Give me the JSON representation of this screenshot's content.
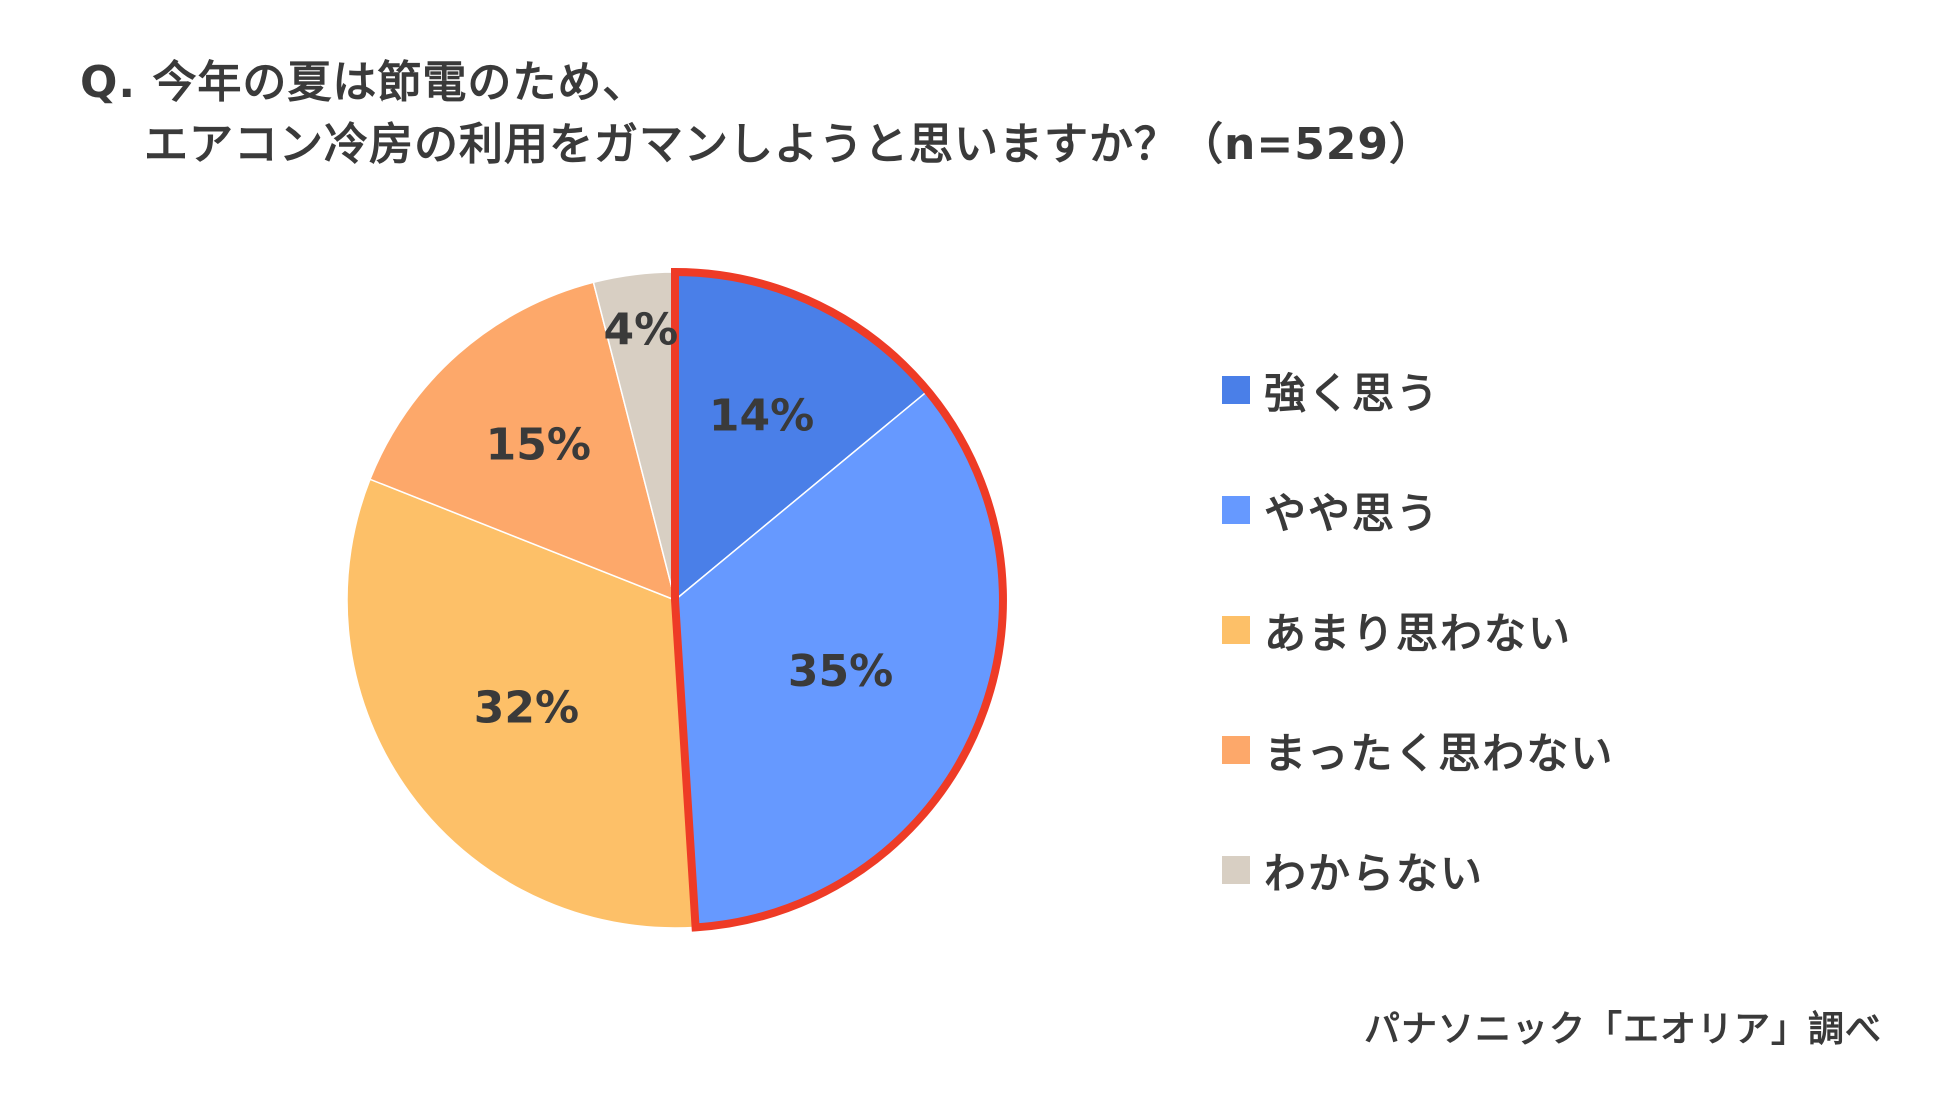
{
  "chart_data": {
    "type": "pie",
    "title_lines": [
      "Q. 今年の夏は節電のため、",
      "エアコン冷房の利用をガマンしようと思いますか？（n=529）"
    ],
    "slices": [
      {
        "label": "強く思う",
        "value": 14,
        "display": "14%",
        "color": "#4a7fe8",
        "highlighted": true
      },
      {
        "label": "やや思う",
        "value": 35,
        "display": "35%",
        "color": "#6699ff",
        "highlighted": true
      },
      {
        "label": "あまり思わない",
        "value": 32,
        "display": "32%",
        "color": "#fdc068",
        "highlighted": false
      },
      {
        "label": "まったく思わない",
        "value": 15,
        "display": "15%",
        "color": "#fda86a",
        "highlighted": false
      },
      {
        "label": "わからない",
        "value": 4,
        "display": "4%",
        "color": "#d8cfc3",
        "highlighted": false
      }
    ],
    "start_angle": "12 o'clock",
    "direction": "clockwise",
    "highlight_color": "#ee3b26",
    "legend_position": "right",
    "source": "パナソニック「エオリア」調べ"
  }
}
